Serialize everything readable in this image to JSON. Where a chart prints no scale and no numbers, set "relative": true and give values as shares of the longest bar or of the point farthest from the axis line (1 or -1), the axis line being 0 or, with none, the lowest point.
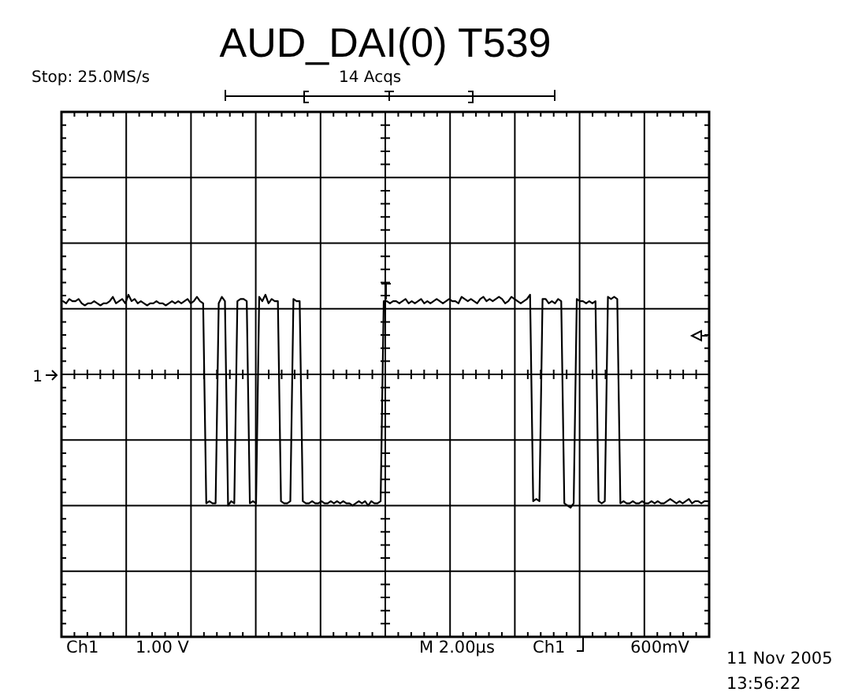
{
  "chart_data": {
    "type": "line",
    "title": "AUD_DAI(0) T539",
    "relative": true,
    "grid": true,
    "marker": "none",
    "line_style": "solid",
    "annotations": [
      "Stop: 25.0MS/s",
      "14 Acqs",
      "Ch1",
      "1.00 V",
      "M 2.00µs",
      "Ch1",
      "600mV",
      "11 Nov 2005",
      "13:56:22",
      "1"
    ],
    "categories": [
      null,
      null,
      null,
      null,
      null,
      null,
      null,
      null,
      null,
      null,
      null,
      null,
      null,
      null,
      null,
      null,
      null,
      null,
      null,
      null,
      null,
      null,
      null,
      null,
      null,
      null,
      null,
      null,
      null,
      null,
      null,
      null,
      null,
      null,
      null,
      null,
      null,
      null,
      null,
      null,
      null,
      null,
      null,
      null,
      null,
      null,
      null,
      null,
      null,
      null,
      null,
      null,
      null,
      null,
      null,
      null,
      null,
      null,
      null,
      null,
      null,
      null,
      null,
      null,
      null,
      null,
      null,
      null,
      null,
      null,
      null,
      null,
      null,
      null,
      null,
      null,
      null,
      null,
      null,
      null,
      null,
      null,
      null,
      null,
      null,
      null,
      null,
      null,
      null,
      null,
      null,
      null,
      null,
      null,
      null,
      null,
      null,
      null,
      null,
      null,
      null,
      null,
      null,
      null,
      null,
      null,
      null,
      null,
      null,
      null,
      null,
      null,
      null,
      null,
      null,
      null,
      null,
      null,
      null,
      null,
      null,
      null,
      null,
      null,
      null,
      null,
      null,
      null,
      null,
      null,
      null,
      null,
      null,
      null,
      null,
      null,
      null,
      null,
      null,
      null,
      null,
      null,
      null,
      null,
      null,
      null,
      null,
      null,
      null,
      null,
      null,
      null,
      null,
      null,
      null,
      null,
      null,
      null,
      null,
      null,
      null,
      null,
      null,
      null,
      null,
      null,
      null,
      null,
      null,
      null,
      null,
      null,
      null,
      null,
      null,
      null,
      null,
      null,
      null,
      null,
      null,
      null,
      null,
      null,
      null,
      null,
      null,
      null,
      null,
      null,
      null,
      null,
      null,
      null,
      null,
      null,
      null,
      null,
      null,
      null,
      null,
      null,
      null,
      null,
      null,
      null,
      null,
      null
    ],
    "series": [
      {
        "color": "#000000",
        "values": [
          0.97,
          0.96,
          0.98,
          0.97,
          0.97,
          0.98,
          0.96,
          0.95,
          0.96,
          0.96,
          0.97,
          0.96,
          0.95,
          0.96,
          0.96,
          0.97,
          0.99,
          0.96,
          0.97,
          0.98,
          0.96,
          1,
          0.97,
          0.98,
          0.96,
          0.97,
          0.96,
          0.95,
          0.96,
          0.96,
          0.97,
          0.96,
          0.96,
          0.95,
          0.96,
          0.97,
          0.96,
          0.97,
          0.96,
          0.97,
          0.98,
          0.96,
          0.97,
          0.99,
          0.97,
          0.96,
          0.02,
          0.03,
          0.02,
          0.02,
          0.96,
          0.99,
          0.97,
          0.01,
          0.03,
          0.02,
          0.97,
          0.98,
          0.98,
          0.97,
          0.02,
          0.03,
          0.02,
          0.99,
          0.97,
          1,
          0.96,
          0.98,
          0.97,
          0.97,
          0.03,
          0.02,
          0.02,
          0.03,
          0.98,
          0.97,
          0.97,
          0.03,
          0.02,
          0.02,
          0.03,
          0.02,
          0.02,
          0.03,
          0.02,
          0.02,
          0.03,
          0.02,
          0.03,
          0.02,
          0.03,
          0.02,
          0.02,
          0.01,
          0.02,
          0.03,
          0.02,
          0.03,
          0.01,
          0.03,
          0.02,
          0.02,
          0.03,
          0.97,
          0.97,
          0.96,
          0.97,
          0.97,
          0.96,
          0.97,
          0.98,
          0.96,
          0.97,
          0.96,
          0.97,
          0.98,
          0.96,
          0.97,
          0.96,
          0.97,
          0.98,
          0.97,
          0.96,
          0.97,
          0.98,
          0.97,
          0.97,
          0.96,
          0.99,
          0.98,
          0.97,
          0.98,
          0.97,
          0.96,
          0.98,
          0.99,
          0.97,
          0.98,
          0.97,
          0.98,
          0.99,
          0.98,
          0.96,
          0.97,
          0.99,
          0.98,
          0.97,
          0.96,
          0.97,
          0.98,
          1,
          0.03,
          0.04,
          0.03,
          0.98,
          0.98,
          0.96,
          0.97,
          0.96,
          0.98,
          0.97,
          0.02,
          0.01,
          0,
          0.02,
          0.98,
          0.97,
          0.97,
          0.96,
          0.97,
          0.96,
          0.97,
          0.03,
          0.02,
          0.03,
          0.99,
          0.98,
          0.99,
          0.98,
          0.02,
          0.03,
          0.02,
          0.02,
          0.03,
          0.02,
          0.02,
          0.03,
          0.02,
          0.02,
          0.03,
          0.02,
          0.03,
          0.02,
          0.02,
          0.03,
          0.04,
          0.03,
          0.02,
          0.03,
          0.02,
          0.03,
          0.04,
          0.02,
          0.03,
          0.03,
          0.02,
          0.03,
          0.03
        ]
      }
    ]
  }
}
